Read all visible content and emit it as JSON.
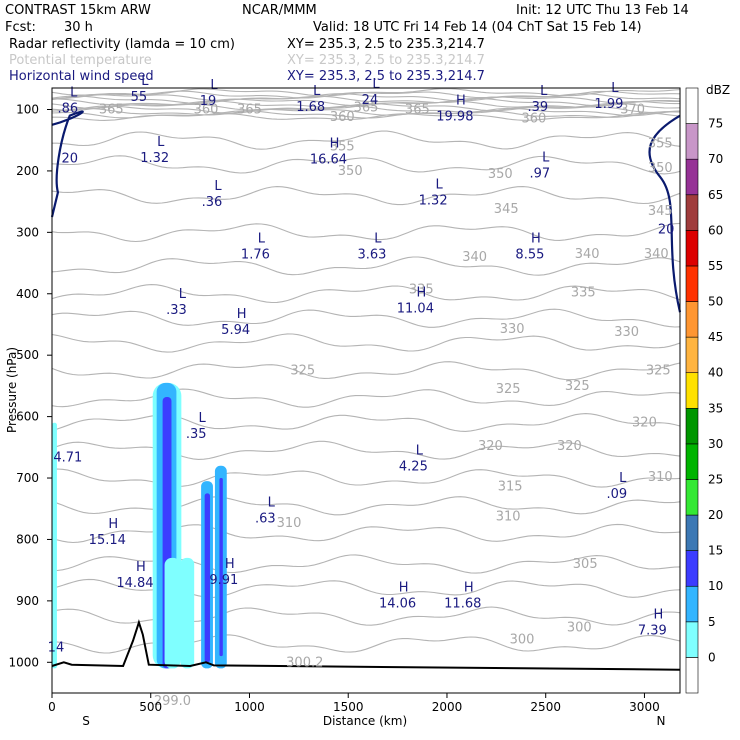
{
  "header": {
    "model": "CONTRAST 15km ARW",
    "org": "NCAR/MMM",
    "init": "Init: 12 UTC Thu 13 Feb 14",
    "fcst_label": "Fcst:",
    "fcst_value": "30 h",
    "valid": "Valid: 18 UTC Fri 14 Feb 14 (04 ChT Sat 15 Feb 14)",
    "fields": [
      {
        "name": "Radar reflectivity (lamda = 10 cm)",
        "xy": "XY= 235.3,  2.5 to 235.3,214.7",
        "color": "#000000"
      },
      {
        "name": "Potential temperature",
        "xy": "XY= 235.3,  2.5 to 235.3,214.7",
        "color": "#c8c8c8"
      },
      {
        "name": "Horizontal wind speed",
        "xy": "XY= 235.3,  2.5 to 235.3,214.7",
        "color": "#1a1a80"
      }
    ]
  },
  "chart_data": {
    "type": "cross-section",
    "xlabel": "Distance (km)",
    "ylabel": "Pressure (hPa)",
    "x_ticks": [
      0,
      500,
      1000,
      1500,
      2000,
      2500,
      3000
    ],
    "y_ticks": [
      100,
      200,
      300,
      400,
      500,
      600,
      700,
      800,
      900,
      1000
    ],
    "xlim": [
      0,
      3180
    ],
    "ylim": [
      1050,
      65
    ],
    "end_labels": {
      "left": "S",
      "right": "N"
    },
    "theta_labels": [
      {
        "x": 300,
        "p": 100,
        "t": "365"
      },
      {
        "x": 780,
        "p": 100,
        "t": "360"
      },
      {
        "x": 1000,
        "p": 100,
        "t": "365"
      },
      {
        "x": 1590,
        "p": 97,
        "t": "365"
      },
      {
        "x": 1470,
        "p": 112,
        "t": "360"
      },
      {
        "x": 1850,
        "p": 100,
        "t": "365"
      },
      {
        "x": 2440,
        "p": 115,
        "t": "360"
      },
      {
        "x": 2940,
        "p": 100,
        "t": "370"
      },
      {
        "x": 1470,
        "p": 160,
        "t": "355"
      },
      {
        "x": 1510,
        "p": 200,
        "t": "350"
      },
      {
        "x": 2270,
        "p": 205,
        "t": "350"
      },
      {
        "x": 3080,
        "p": 155,
        "t": "355"
      },
      {
        "x": 3080,
        "p": 195,
        "t": "350"
      },
      {
        "x": 2300,
        "p": 262,
        "t": "345"
      },
      {
        "x": 3080,
        "p": 265,
        "t": "345"
      },
      {
        "x": 2140,
        "p": 340,
        "t": "340"
      },
      {
        "x": 2710,
        "p": 335,
        "t": "340"
      },
      {
        "x": 3060,
        "p": 335,
        "t": "340"
      },
      {
        "x": 1870,
        "p": 393,
        "t": "335"
      },
      {
        "x": 2690,
        "p": 398,
        "t": "335"
      },
      {
        "x": 2330,
        "p": 457,
        "t": "330"
      },
      {
        "x": 2910,
        "p": 462,
        "t": "330"
      },
      {
        "x": 1270,
        "p": 525,
        "t": "325"
      },
      {
        "x": 2310,
        "p": 555,
        "t": "325"
      },
      {
        "x": 2660,
        "p": 550,
        "t": "325"
      },
      {
        "x": 3070,
        "p": 525,
        "t": "325"
      },
      {
        "x": 3000,
        "p": 610,
        "t": "320"
      },
      {
        "x": 2220,
        "p": 648,
        "t": "320"
      },
      {
        "x": 2620,
        "p": 648,
        "t": "320"
      },
      {
        "x": 2320,
        "p": 714,
        "t": "315"
      },
      {
        "x": 3080,
        "p": 698,
        "t": "310"
      },
      {
        "x": 1200,
        "p": 773,
        "t": "310"
      },
      {
        "x": 2310,
        "p": 763,
        "t": "310"
      },
      {
        "x": 2700,
        "p": 840,
        "t": "305"
      },
      {
        "x": 2380,
        "p": 963,
        "t": "300"
      },
      {
        "x": 2670,
        "p": 943,
        "t": "300"
      },
      {
        "x": 1280,
        "p": 1000,
        "t": "300.2"
      },
      {
        "x": 610,
        "p": 1063,
        "t": "299.0"
      }
    ],
    "extrema": [
      {
        "x": 80,
        "p": 82,
        "h": "L",
        "v": ".86"
      },
      {
        "x": 440,
        "p": 63,
        "h": "L",
        "v": "55"
      },
      {
        "x": 790,
        "p": 70,
        "h": "L",
        "v": "19"
      },
      {
        "x": 1310,
        "p": 80,
        "h": "L",
        "v": "1.68"
      },
      {
        "x": 1610,
        "p": 68,
        "h": "L",
        "v": "24"
      },
      {
        "x": 2040,
        "p": 95,
        "h": "H",
        "v": "19.98"
      },
      {
        "x": 2460,
        "p": 80,
        "h": "L",
        "v": ".39"
      },
      {
        "x": 2820,
        "p": 75,
        "h": "L",
        "v": "1.99"
      },
      {
        "x": 520,
        "p": 163,
        "h": "L",
        "v": "1.32"
      },
      {
        "x": 1400,
        "p": 165,
        "h": "H",
        "v": "16.64"
      },
      {
        "x": 2470,
        "p": 188,
        "h": "L",
        "v": ".97"
      },
      {
        "x": 810,
        "p": 234,
        "h": "L",
        "v": ".36"
      },
      {
        "x": 1930,
        "p": 232,
        "h": "L",
        "v": "1.32"
      },
      {
        "x": 1030,
        "p": 320,
        "h": "L",
        "v": "1.76"
      },
      {
        "x": 1620,
        "p": 320,
        "h": "L",
        "v": "3.63"
      },
      {
        "x": 2420,
        "p": 320,
        "h": "H",
        "v": "8.55"
      },
      {
        "x": 630,
        "p": 410,
        "h": "L",
        "v": ".33"
      },
      {
        "x": 1840,
        "p": 408,
        "h": "H",
        "v": "11.04"
      },
      {
        "x": 930,
        "p": 443,
        "h": "H",
        "v": "5.94"
      },
      {
        "x": 730,
        "p": 612,
        "h": "L",
        "v": ".35"
      },
      {
        "x": 1830,
        "p": 665,
        "h": "L",
        "v": "4.25"
      },
      {
        "x": 80,
        "p": 650,
        "h": "",
        "v": "4.71"
      },
      {
        "x": 2860,
        "p": 710,
        "h": "L",
        "v": ".09"
      },
      {
        "x": 1080,
        "p": 750,
        "h": "L",
        "v": ".63"
      },
      {
        "x": 280,
        "p": 785,
        "h": "H",
        "v": "15.14"
      },
      {
        "x": 420,
        "p": 855,
        "h": "H",
        "v": "14.84"
      },
      {
        "x": 870,
        "p": 850,
        "h": "H",
        "v": "9.91"
      },
      {
        "x": 1750,
        "p": 888,
        "h": "H",
        "v": "14.06"
      },
      {
        "x": 2080,
        "p": 888,
        "h": "H",
        "v": "11.68"
      },
      {
        "x": 3040,
        "p": 932,
        "h": "H",
        "v": "7.39"
      },
      {
        "x": 20,
        "p": 960,
        "h": "",
        "v": "14"
      }
    ],
    "wind_labels": [
      {
        "x": 90,
        "p": 180,
        "t": "20"
      },
      {
        "x": 3110,
        "p": 295,
        "t": "20"
      }
    ],
    "legend": {
      "unit": "dBZ",
      "levels": [
        0,
        5,
        10,
        15,
        20,
        25,
        30,
        35,
        40,
        45,
        50,
        55,
        60,
        65,
        70,
        75
      ],
      "colors": [
        "#ffffff",
        "#7fffff",
        "#33b5ff",
        "#3c3cff",
        "#3c78b4",
        "#34e834",
        "#00b400",
        "#009600",
        "#ffe100",
        "#ffb440",
        "#ff9632",
        "#ff3200",
        "#dc0000",
        "#a03c3c",
        "#963296",
        "#c896c8",
        "#ffffff"
      ]
    }
  }
}
